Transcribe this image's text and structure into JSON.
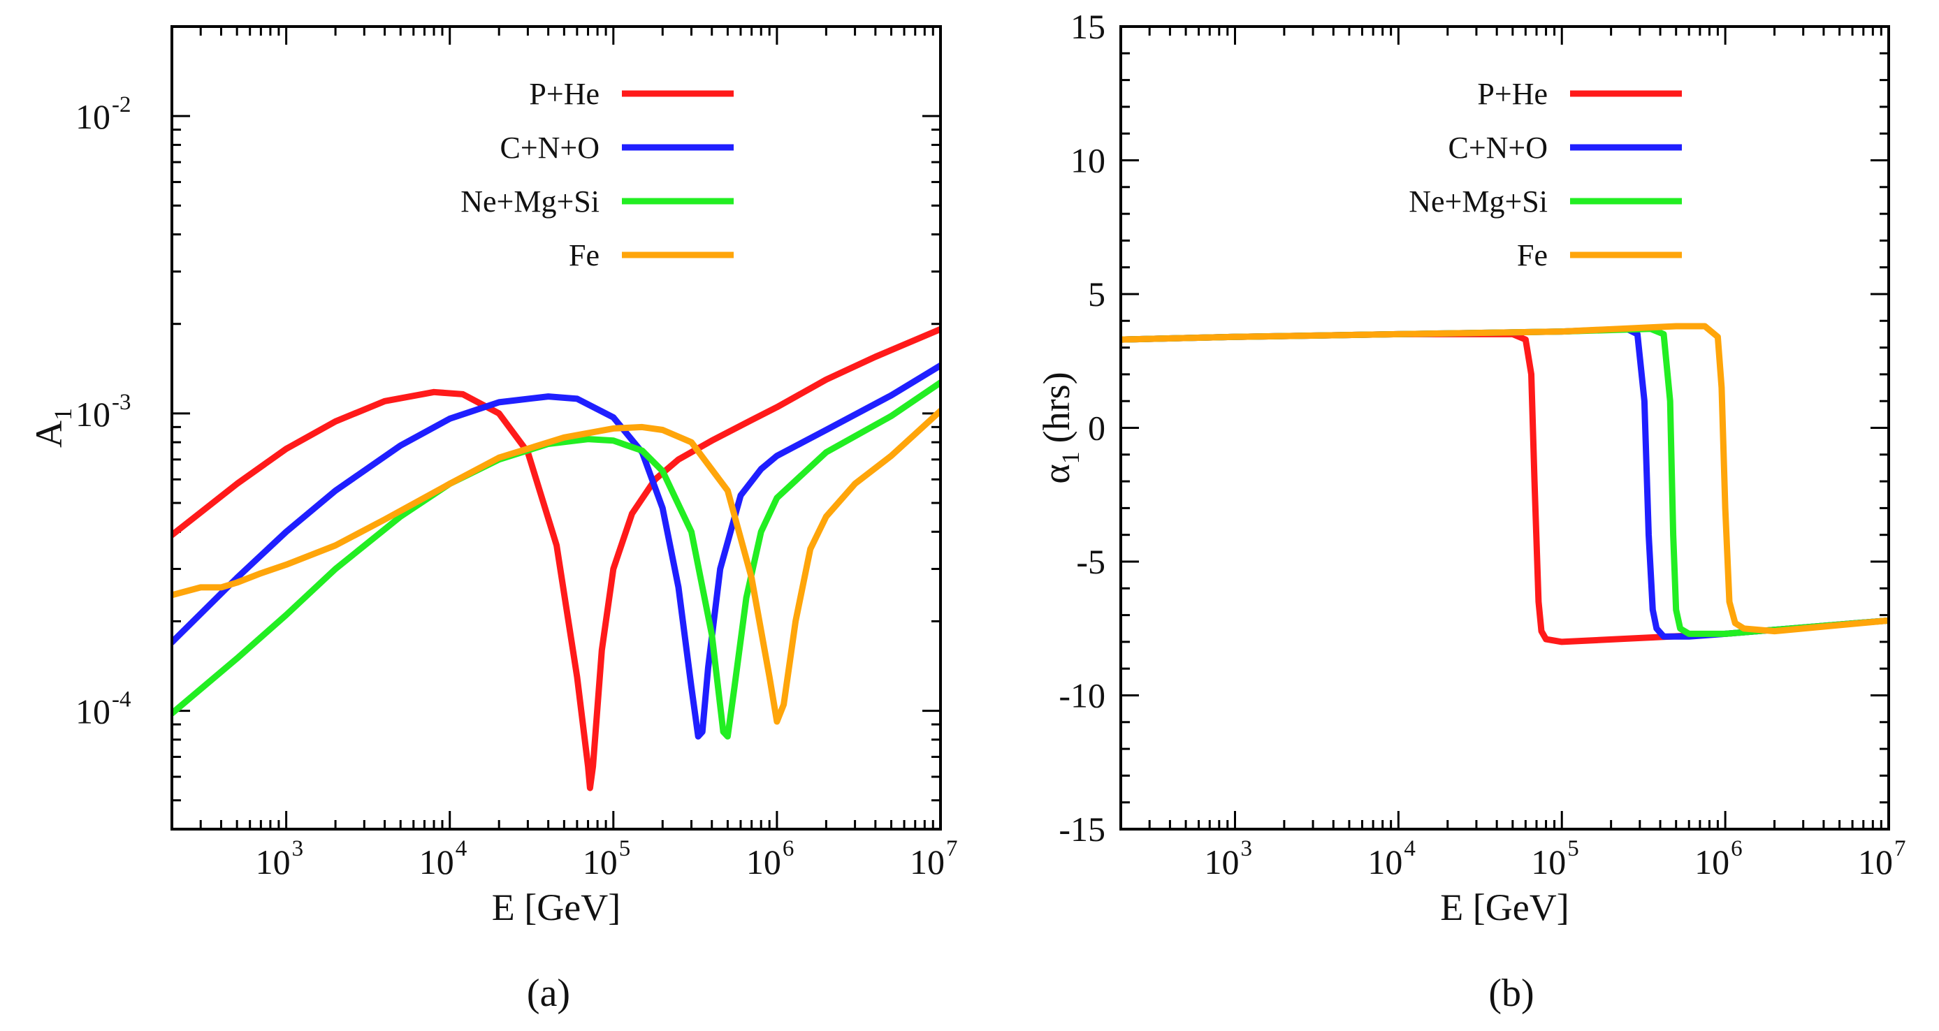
{
  "chart_data": [
    {
      "type": "line",
      "panel_label": "(a)",
      "title": "",
      "xlabel": "E [GeV]",
      "ylabel": "A",
      "ylabel_sub": "1",
      "xscale": "log",
      "yscale": "log",
      "xlim": [
        200,
        10000000
      ],
      "ylim": [
        4e-05,
        0.02
      ],
      "x_ticks": [
        {
          "value": 1000,
          "base": "10",
          "exp": "3"
        },
        {
          "value": 10000,
          "base": "10",
          "exp": "4"
        },
        {
          "value": 100000,
          "base": "10",
          "exp": "5"
        },
        {
          "value": 1000000,
          "base": "10",
          "exp": "6"
        },
        {
          "value": 10000000,
          "base": "10",
          "exp": "7"
        }
      ],
      "y_ticks": [
        {
          "value": 0.0001,
          "base": "10",
          "exp": "-4"
        },
        {
          "value": 0.001,
          "base": "10",
          "exp": "-3"
        },
        {
          "value": 0.01,
          "base": "10",
          "exp": "-2"
        }
      ],
      "legend_position": "top-right",
      "series": [
        {
          "name": "P+He",
          "color": "#ff1a1a",
          "x": [
            200,
            500,
            1000,
            2000,
            4000,
            8000,
            12000,
            20000,
            30000,
            45000,
            60000,
            70000,
            72000,
            75000,
            85000,
            100000,
            130000,
            180000,
            250000,
            400000,
            700000,
            1000000,
            2000000,
            4000000,
            10000000
          ],
          "y": [
            0.00039,
            0.00058,
            0.00076,
            0.00094,
            0.0011,
            0.00118,
            0.00116,
            0.001,
            0.00074,
            0.00036,
            0.00013,
            6.5e-05,
            5.5e-05,
            6.5e-05,
            0.00016,
            0.0003,
            0.00046,
            0.0006,
            0.0007,
            0.00081,
            0.00095,
            0.00105,
            0.0013,
            0.00155,
            0.00192
          ]
        },
        {
          "name": "C+N+O",
          "color": "#1f1fff",
          "x": [
            200,
            500,
            1000,
            2000,
            5000,
            10000,
            20000,
            40000,
            60000,
            100000,
            150000,
            200000,
            250000,
            300000,
            330000,
            350000,
            380000,
            450000,
            600000,
            800000,
            1000000,
            2000000,
            5000000,
            10000000
          ],
          "y": [
            0.00017,
            0.00028,
            0.0004,
            0.00055,
            0.00078,
            0.00096,
            0.00109,
            0.00114,
            0.00112,
            0.00097,
            0.00074,
            0.00048,
            0.00026,
            0.00012,
            8.2e-05,
            8.5e-05,
            0.00014,
            0.0003,
            0.00053,
            0.00065,
            0.00072,
            0.00088,
            0.00115,
            0.00145
          ]
        },
        {
          "name": "Ne+Mg+Si",
          "color": "#22ee22",
          "x": [
            200,
            500,
            1000,
            2000,
            5000,
            10000,
            20000,
            40000,
            70000,
            100000,
            150000,
            200000,
            300000,
            400000,
            470000,
            500000,
            550000,
            650000,
            800000,
            1000000,
            2000000,
            5000000,
            10000000
          ],
          "y": [
            9.8e-05,
            0.00015,
            0.00021,
            0.0003,
            0.00045,
            0.00058,
            0.0007,
            0.00079,
            0.00082,
            0.00081,
            0.00075,
            0.00064,
            0.0004,
            0.00018,
            8.5e-05,
            8.2e-05,
            0.00012,
            0.00024,
            0.0004,
            0.00052,
            0.00074,
            0.00098,
            0.00127
          ]
        },
        {
          "name": "Fe",
          "color": "#ffa50a",
          "x": [
            200,
            300,
            400,
            500,
            700,
            1000,
            2000,
            4000,
            10000,
            20000,
            50000,
            100000,
            150000,
            200000,
            300000,
            500000,
            700000,
            900000,
            1000000,
            1100000,
            1300000,
            1600000,
            2000000,
            3000000,
            5000000,
            10000000
          ],
          "y": [
            0.000245,
            0.00026,
            0.00026,
            0.00027,
            0.00029,
            0.00031,
            0.00036,
            0.00044,
            0.00058,
            0.00071,
            0.00083,
            0.00089,
            0.0009,
            0.00088,
            0.0008,
            0.00055,
            0.00028,
            0.00013,
            9.2e-05,
            0.000105,
            0.0002,
            0.00035,
            0.00045,
            0.00058,
            0.00072,
            0.00102
          ]
        }
      ]
    },
    {
      "type": "line",
      "panel_label": "(b)",
      "title": "",
      "xlabel": "E [GeV]",
      "ylabel": "α",
      "ylabel_sub": "1",
      "ylabel_unit": "(hrs)",
      "xscale": "log",
      "yscale": "linear",
      "xlim": [
        200,
        10000000
      ],
      "ylim": [
        -15,
        15
      ],
      "x_ticks": [
        {
          "value": 1000,
          "base": "10",
          "exp": "3"
        },
        {
          "value": 10000,
          "base": "10",
          "exp": "4"
        },
        {
          "value": 100000,
          "base": "10",
          "exp": "5"
        },
        {
          "value": 1000000,
          "base": "10",
          "exp": "6"
        },
        {
          "value": 10000000,
          "base": "10",
          "exp": "7"
        }
      ],
      "y_ticks": [
        {
          "value": 15,
          "label": "15"
        },
        {
          "value": 10,
          "label": "10"
        },
        {
          "value": 5,
          "label": "5"
        },
        {
          "value": 0,
          "label": "0"
        },
        {
          "value": -5,
          "label": "-5"
        },
        {
          "value": -10,
          "label": "-10"
        },
        {
          "value": -15,
          "label": "-15"
        }
      ],
      "legend_position": "top-right",
      "series": [
        {
          "name": "P+He",
          "color": "#ff1a1a",
          "x": [
            200,
            1000,
            10000,
            50000,
            60000,
            65000,
            68000,
            72000,
            75000,
            80000,
            100000,
            1000000,
            10000000
          ],
          "y": [
            3.3,
            3.4,
            3.5,
            3.5,
            3.3,
            2.0,
            -2.0,
            -6.5,
            -7.6,
            -7.9,
            -8.0,
            -7.7,
            -7.2
          ]
        },
        {
          "name": "C+N+O",
          "color": "#1f1fff",
          "x": [
            200,
            1000,
            10000,
            100000,
            250000,
            290000,
            320000,
            340000,
            360000,
            380000,
            420000,
            600000,
            1000000,
            10000000
          ],
          "y": [
            3.3,
            3.4,
            3.5,
            3.6,
            3.7,
            3.5,
            1.0,
            -4.0,
            -6.8,
            -7.5,
            -7.8,
            -7.8,
            -7.7,
            -7.2
          ]
        },
        {
          "name": "Ne+Mg+Si",
          "color": "#22ee22",
          "x": [
            200,
            1000,
            10000,
            100000,
            350000,
            420000,
            460000,
            480000,
            500000,
            530000,
            600000,
            1000000,
            10000000
          ],
          "y": [
            3.3,
            3.4,
            3.5,
            3.6,
            3.7,
            3.5,
            1.0,
            -4.0,
            -6.8,
            -7.5,
            -7.7,
            -7.7,
            -7.2
          ]
        },
        {
          "name": "Fe",
          "color": "#ffa50a",
          "x": [
            200,
            1000,
            10000,
            100000,
            500000,
            750000,
            900000,
            950000,
            1000000,
            1060000,
            1150000,
            1300000,
            2000000,
            10000000
          ],
          "y": [
            3.3,
            3.4,
            3.5,
            3.6,
            3.8,
            3.8,
            3.4,
            1.5,
            -3.0,
            -6.5,
            -7.3,
            -7.5,
            -7.6,
            -7.2
          ]
        }
      ]
    }
  ]
}
